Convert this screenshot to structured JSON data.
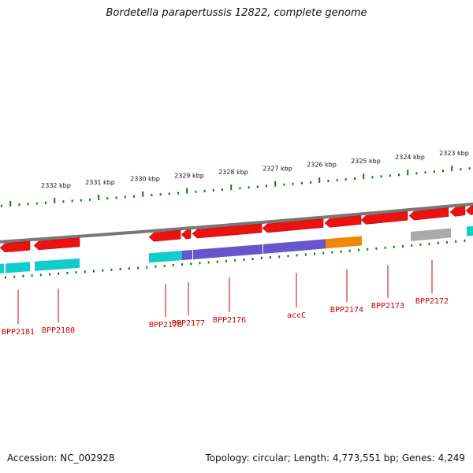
{
  "title": "Bordetella parapertussis 12822, complete genome",
  "footer": {
    "accession": "Accession: NC_002928",
    "summary": "Topology: circular; Length: 4,773,551 bp; Genes: 4,249"
  },
  "colors": {
    "forward_cds": "#ee1111",
    "reverse_cds": "#ee1111",
    "cog_cyan": "#11cccc",
    "cog_purple": "#6655cc",
    "cog_orange": "#ee8800",
    "cog_gray": "#aaaaaa",
    "backbone": "#777777",
    "tick": "#117711",
    "label": "#cc0000"
  },
  "scale": {
    "unit": "kbp",
    "labels": [
      "2332 kbp",
      "2331 kbp",
      "2330 kbp",
      "2329 kbp",
      "2328 kbp",
      "2327 kbp",
      "2326 kbp",
      "2325 kbp",
      "2324 kbp",
      "2323 kbp"
    ]
  },
  "genes": [
    {
      "id": "BPP2181",
      "label": "BPP2181"
    },
    {
      "id": "BPP2180",
      "label": "BPP2180"
    },
    {
      "id": "BPP2178",
      "label": "BPP2178"
    },
    {
      "id": "BPP2177",
      "label": "BPP2177"
    },
    {
      "id": "BPP2176",
      "label": "BPP2176"
    },
    {
      "id": "accC",
      "label": "accC"
    },
    {
      "id": "BPP2174",
      "label": "BPP2174"
    },
    {
      "id": "BPP2173",
      "label": "BPP2173"
    },
    {
      "id": "BPP2172",
      "label": "BPP2172"
    }
  ]
}
